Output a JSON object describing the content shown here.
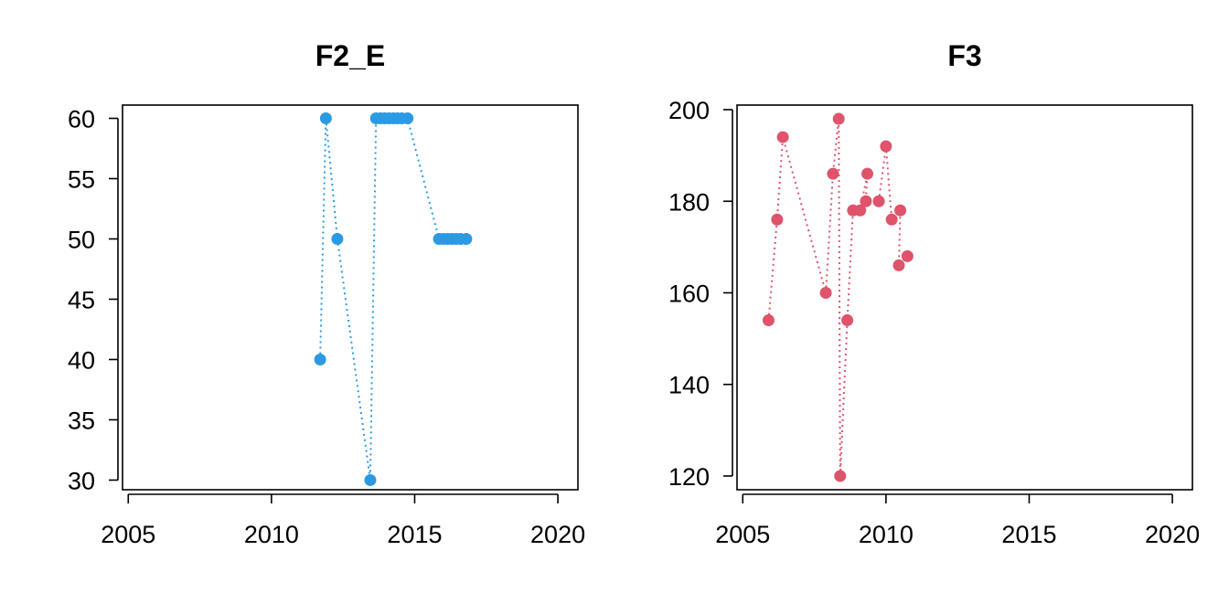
{
  "chart_data": [
    {
      "type": "line",
      "title": "F2_E",
      "xlabel": "",
      "ylabel": "",
      "xlim": [
        2004.8,
        2020.7
      ],
      "ylim": [
        29.2,
        61.1
      ],
      "xticks": [
        2005,
        2010,
        2015,
        2020
      ],
      "yticks": [
        30,
        35,
        40,
        45,
        50,
        55,
        60
      ],
      "grid": false,
      "line_style": "dotted",
      "color": "#2B9AE3",
      "series": [
        {
          "x": [
            2011.7,
            2011.9,
            2012.3,
            2013.45,
            2013.65,
            2013.8,
            2013.95,
            2014.1,
            2014.25,
            2014.4,
            2014.55,
            2014.75,
            2015.85,
            2016.0,
            2016.15,
            2016.3,
            2016.45,
            2016.6,
            2016.8
          ],
          "values": [
            40,
            60,
            50,
            30,
            60,
            60,
            60,
            60,
            60,
            60,
            60,
            60,
            50,
            50,
            50,
            50,
            50,
            50,
            50
          ]
        }
      ]
    },
    {
      "type": "line",
      "title": "F3",
      "xlabel": "",
      "ylabel": "",
      "xlim": [
        2004.8,
        2020.7
      ],
      "ylim": [
        117,
        201
      ],
      "xticks": [
        2005,
        2010,
        2015,
        2020
      ],
      "yticks": [
        120,
        140,
        160,
        180,
        200
      ],
      "grid": false,
      "line_style": "dotted",
      "color": "#DF536B",
      "series": [
        {
          "x": [
            2005.9,
            2006.2,
            2006.4,
            2007.9,
            2008.15,
            2008.35,
            2008.4,
            2008.65,
            2008.85,
            2009.1,
            2009.35,
            2009.3,
            2009.75,
            2010.0,
            2010.2,
            2010.5,
            2010.45,
            2010.75
          ],
          "values": [
            154,
            176,
            194,
            160,
            186,
            198,
            120,
            154,
            178,
            178,
            186,
            180,
            180,
            192,
            176,
            178,
            166,
            168
          ]
        }
      ]
    }
  ]
}
